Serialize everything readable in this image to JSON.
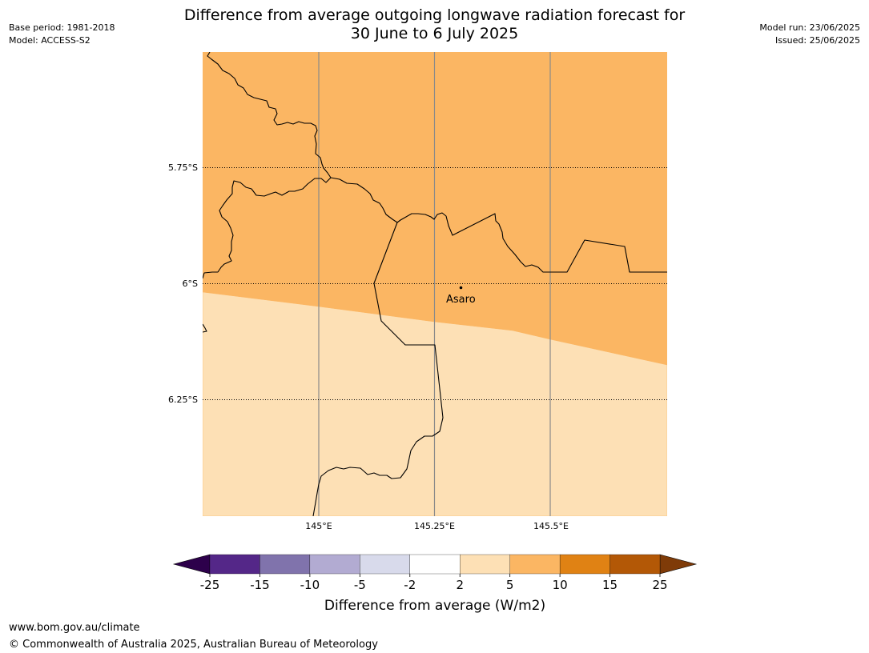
{
  "title": {
    "line1": "Difference from average outgoing longwave radiation forecast for",
    "line2": "30 June to 6 July 2025"
  },
  "meta": {
    "base_period": "Base period: 1981-2018",
    "model": "Model: ACCESS-S2",
    "model_run": "Model run: 23/06/2025",
    "issued": "Issued: 25/06/2025"
  },
  "map": {
    "lat_labels": [
      "5.75°S",
      "6°S",
      "6.25°S"
    ],
    "lon_labels": [
      "145°E",
      "145.25°E",
      "145.5°E"
    ],
    "place": {
      "name": "Asaro"
    },
    "fill_colors": {
      "upper_zone": "#fbb663",
      "lower_zone": "#fde0b5"
    }
  },
  "colorbar": {
    "label": "Difference from average (W/m2)",
    "ticks": [
      "-25",
      "-15",
      "-10",
      "-5",
      "-2",
      "2",
      "5",
      "10",
      "15",
      "25"
    ],
    "colors": [
      "#542788",
      "#8073ac",
      "#b2abd2",
      "#d8daeb",
      "#ffffff",
      "#fde0b5",
      "#fbb663",
      "#e08214",
      "#b35806"
    ],
    "under_color": "#2d004b",
    "over_color": "#7f3b08"
  },
  "footer": {
    "url": "www.bom.gov.au/climate",
    "copyright": "© Commonwealth of Australia 2025, Australian Bureau of Meteorology"
  }
}
